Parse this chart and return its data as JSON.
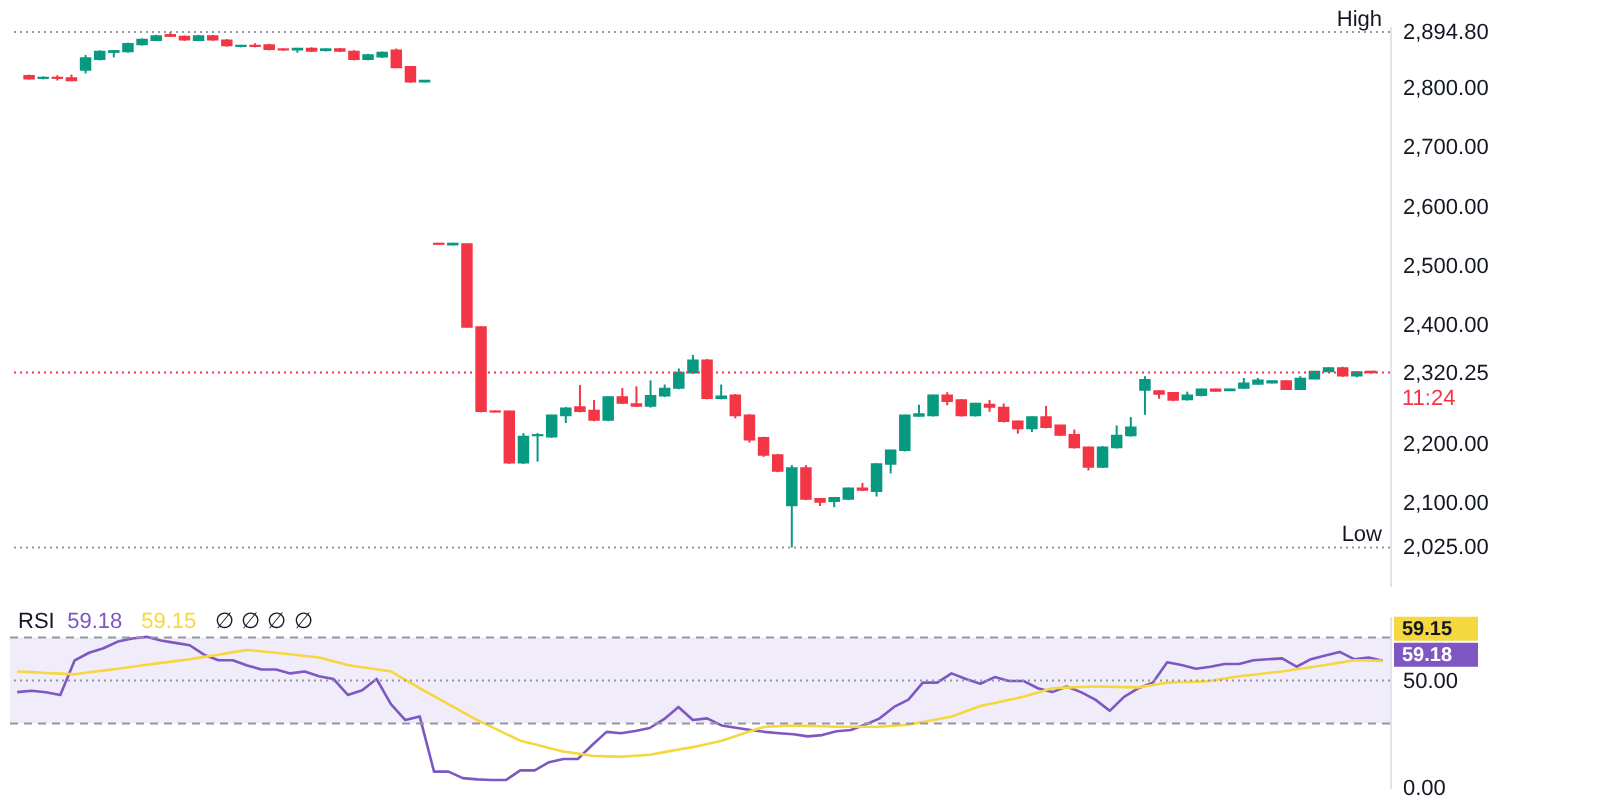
{
  "chart_data": [
    {
      "type": "candlestick",
      "tick_labels": "y",
      "categories": [
        null,
        null,
        null,
        null,
        null,
        null,
        null,
        null,
        null,
        null,
        null,
        null,
        null,
        null,
        null,
        null,
        null,
        null,
        null,
        null,
        null,
        null,
        null,
        null,
        null,
        null,
        null,
        null,
        null,
        null,
        null,
        null,
        null,
        null,
        null,
        null,
        null,
        null,
        null,
        null,
        null,
        null,
        null,
        null,
        null,
        null,
        null,
        null,
        null,
        null,
        null,
        null,
        null,
        null,
        null,
        null,
        null,
        null,
        null,
        null,
        null,
        null,
        null,
        null,
        null,
        null,
        null,
        null,
        null,
        null,
        null,
        null,
        null,
        null,
        null,
        null,
        null,
        null,
        null,
        null,
        null,
        null,
        null,
        null,
        null,
        null,
        null,
        null,
        null,
        null,
        null,
        null,
        null,
        null,
        null,
        null
      ],
      "ohlc": [
        [
          2821,
          2823,
          2815,
          2816
        ],
        [
          2817,
          2820,
          2815,
          2818
        ],
        [
          2818,
          2822,
          2813,
          2817
        ],
        [
          2817,
          2823,
          2812,
          2813
        ],
        [
          2831,
          2856,
          2825,
          2851
        ],
        [
          2849,
          2864,
          2847,
          2862
        ],
        [
          2861,
          2864,
          2852,
          2863
        ],
        [
          2862,
          2877,
          2860,
          2875
        ],
        [
          2874,
          2884,
          2872,
          2882
        ],
        [
          2881,
          2890,
          2880,
          2888
        ],
        [
          2890,
          2894.8,
          2887,
          2888
        ],
        [
          2887,
          2889,
          2880,
          2882
        ],
        [
          2881,
          2890,
          2880,
          2888
        ],
        [
          2888,
          2890,
          2880,
          2882
        ],
        [
          2881,
          2883,
          2870,
          2872
        ],
        [
          2871,
          2873,
          2869,
          2872
        ],
        [
          2872,
          2876,
          2869,
          2871
        ],
        [
          2873,
          2875,
          2864,
          2866
        ],
        [
          2866,
          2867,
          2863,
          2865
        ],
        [
          2865,
          2868,
          2860,
          2867
        ],
        [
          2867,
          2869,
          2861,
          2863
        ],
        [
          2864,
          2867,
          2862,
          2866
        ],
        [
          2866,
          2868,
          2861,
          2863
        ],
        [
          2862,
          2864,
          2847,
          2849
        ],
        [
          2849,
          2858,
          2847,
          2856
        ],
        [
          2853,
          2862,
          2851,
          2860
        ],
        [
          2864,
          2867,
          2834,
          2835
        ],
        [
          2836,
          2837,
          2809,
          2811
        ],
        [
          2811,
          2814,
          2810,
          2813
        ],
        [
          2538,
          2539,
          2536,
          2537
        ],
        [
          2536,
          2539,
          2535,
          2538
        ],
        [
          2537,
          2538,
          2396,
          2397
        ],
        [
          2397,
          2398,
          2253,
          2255
        ],
        [
          2255,
          2256,
          2253,
          2254
        ],
        [
          2255,
          2256,
          2166,
          2168
        ],
        [
          2168,
          2218,
          2166,
          2212
        ],
        [
          2214,
          2218,
          2170,
          2215
        ],
        [
          2212,
          2249,
          2210,
          2248
        ],
        [
          2248,
          2262,
          2235,
          2260
        ],
        [
          2262,
          2299,
          2253,
          2255
        ],
        [
          2256,
          2274,
          2238,
          2240
        ],
        [
          2240,
          2280,
          2238,
          2279
        ],
        [
          2279,
          2294,
          2267,
          2269
        ],
        [
          2267,
          2297,
          2262,
          2264
        ],
        [
          2264,
          2307,
          2261,
          2281
        ],
        [
          2281,
          2300,
          2279,
          2293
        ],
        [
          2294,
          2327,
          2292,
          2320
        ],
        [
          2320,
          2350,
          2318,
          2341
        ],
        [
          2341,
          2343,
          2275,
          2277
        ],
        [
          2277,
          2300,
          2275,
          2280
        ],
        [
          2282,
          2284,
          2243,
          2248
        ],
        [
          2248,
          2250,
          2202,
          2207
        ],
        [
          2210,
          2212,
          2178,
          2181
        ],
        [
          2181,
          2183,
          2152,
          2154
        ],
        [
          2096,
          2164,
          2025,
          2159
        ],
        [
          2159,
          2164,
          2105,
          2107
        ],
        [
          2107,
          2108,
          2095,
          2102
        ],
        [
          2103,
          2110,
          2093,
          2109
        ],
        [
          2107,
          2126,
          2105,
          2125
        ],
        [
          2125,
          2134,
          2120,
          2122
        ],
        [
          2120,
          2167,
          2111,
          2166
        ],
        [
          2166,
          2190,
          2150,
          2189
        ],
        [
          2189,
          2249,
          2187,
          2248
        ],
        [
          2247,
          2266,
          2246,
          2250
        ],
        [
          2248,
          2283,
          2246,
          2282
        ],
        [
          2282,
          2287,
          2265,
          2272
        ],
        [
          2274,
          2275,
          2246,
          2248
        ],
        [
          2248,
          2269,
          2246,
          2268
        ],
        [
          2266,
          2274,
          2254,
          2262
        ],
        [
          2261,
          2268,
          2236,
          2238
        ],
        [
          2238,
          2239,
          2217,
          2226
        ],
        [
          2226,
          2246,
          2220,
          2245
        ],
        [
          2245,
          2264,
          2226,
          2228
        ],
        [
          2231,
          2232,
          2213,
          2215
        ],
        [
          2215,
          2224,
          2192,
          2194
        ],
        [
          2194,
          2195,
          2155,
          2161
        ],
        [
          2161,
          2196,
          2159,
          2194
        ],
        [
          2194,
          2231,
          2192,
          2214
        ],
        [
          2214,
          2245,
          2212,
          2228
        ],
        [
          2291,
          2314,
          2249,
          2308
        ],
        [
          2289,
          2290,
          2276,
          2284
        ],
        [
          2286,
          2287,
          2272,
          2274
        ],
        [
          2275,
          2288,
          2273,
          2282
        ],
        [
          2282,
          2293,
          2280,
          2292
        ],
        [
          2292,
          2293,
          2288,
          2289
        ],
        [
          2290,
          2293,
          2289,
          2292
        ],
        [
          2294,
          2311,
          2293,
          2302
        ],
        [
          2301,
          2311,
          2300,
          2307
        ],
        [
          2303,
          2307,
          2302,
          2306
        ],
        [
          2306,
          2307,
          2291,
          2292
        ],
        [
          2292,
          2314,
          2291,
          2310
        ],
        [
          2310,
          2323,
          2309,
          2322
        ],
        [
          2322,
          2329,
          2321,
          2328
        ],
        [
          2328,
          2330,
          2313,
          2315
        ],
        [
          2315,
          2322,
          2312,
          2321
        ],
        [
          2322,
          2323,
          2319,
          2320.25
        ]
      ],
      "colors": [
        "#f23645",
        "#089981",
        "#f23645",
        "#f23645",
        "#089981",
        "#089981",
        "#089981",
        "#089981",
        "#089981",
        "#089981",
        "#f23645",
        "#f23645",
        "#089981",
        "#f23645",
        "#f23645",
        "#089981",
        "#f23645",
        "#f23645",
        "#f23645",
        "#089981",
        "#f23645",
        "#089981",
        "#f23645",
        "#f23645",
        "#089981",
        "#089981",
        "#f23645",
        "#f23645",
        "#089981",
        "#f23645",
        "#089981",
        "#f23645",
        "#f23645",
        "#f23645",
        "#f23645",
        "#089981",
        "#089981",
        "#089981",
        "#089981",
        "#f23645",
        "#f23645",
        "#089981",
        "#f23645",
        "#f23645",
        "#089981",
        "#089981",
        "#089981",
        "#089981",
        "#f23645",
        "#089981",
        "#f23645",
        "#f23645",
        "#f23645",
        "#f23645",
        "#089981",
        "#f23645",
        "#f23645",
        "#089981",
        "#089981",
        "#f23645",
        "#089981",
        "#089981",
        "#089981",
        "#089981",
        "#089981",
        "#f23645",
        "#f23645",
        "#089981",
        "#f23645",
        "#f23645",
        "#f23645",
        "#089981",
        "#f23645",
        "#f23645",
        "#f23645",
        "#f23645",
        "#089981",
        "#089981",
        "#089981",
        "#089981",
        "#f23645",
        "#f23645",
        "#089981",
        "#089981",
        "#f23645",
        "#089981",
        "#089981",
        "#089981",
        "#089981",
        "#f23645",
        "#089981",
        "#089981",
        "#089981",
        "#f23645",
        "#089981",
        "#f23645"
      ],
      "ylim": [
        1960,
        2905
      ],
      "yticks": [
        {
          "value": 2025,
          "label": "2,025.00"
        },
        {
          "value": 2100,
          "label": "2,100.00"
        },
        {
          "value": 2200,
          "label": "2,200.00"
        },
        {
          "value": 2320.25,
          "label": "2,320.25"
        },
        {
          "value": 2400,
          "label": "2,400.00"
        },
        {
          "value": 2500,
          "label": "2,500.00"
        },
        {
          "value": 2600,
          "label": "2,600.00"
        },
        {
          "value": 2700,
          "label": "2,700.00"
        },
        {
          "value": 2800,
          "label": "2,800.00"
        },
        {
          "value": 2894.8,
          "label": "2,894.80"
        }
      ],
      "ref_lines": [
        {
          "axis": "y",
          "value": 2894.8,
          "label": "High",
          "color": "#9598a1",
          "line_style": "dotted"
        },
        {
          "axis": "y",
          "value": 2025,
          "label": "Low",
          "color": "#9598a1",
          "line_style": "dotted"
        },
        {
          "axis": "y",
          "value": 2320.25,
          "color": "#f23645",
          "line_style": "dotted"
        }
      ],
      "annotations": [
        "11:24"
      ]
    },
    {
      "type": "line",
      "title": "RSI",
      "tick_labels": "y",
      "ylim": [
        0,
        80
      ],
      "yticks": [
        {
          "value": 0,
          "label": "0.00"
        },
        {
          "value": 50,
          "label": "50.00"
        }
      ],
      "categories": [
        null,
        null,
        null,
        null,
        null,
        null,
        null,
        null,
        null,
        null,
        null,
        null,
        null,
        null,
        null,
        null,
        null,
        null,
        null,
        null,
        null,
        null,
        null,
        null,
        null,
        null,
        null,
        null,
        null,
        null,
        null,
        null,
        null,
        null,
        null,
        null,
        null,
        null,
        null,
        null,
        null,
        null,
        null,
        null,
        null,
        null,
        null,
        null,
        null,
        null,
        null,
        null,
        null,
        null,
        null,
        null,
        null,
        null,
        null,
        null,
        null,
        null,
        null,
        null,
        null,
        null,
        null,
        null,
        null,
        null,
        null,
        null,
        null,
        null,
        null,
        null,
        null,
        null,
        null,
        null,
        null,
        null,
        null,
        null,
        null,
        null,
        null,
        null,
        null,
        null,
        null,
        null,
        null,
        null,
        null,
        null
      ],
      "series": [
        {
          "color": "#7e57c2",
          "values": [
            44.6,
            45.2,
            44.5,
            43.3,
            59.4,
            62.9,
            65,
            68.1,
            69.5,
            70.3,
            68.6,
            67.5,
            66.4,
            62,
            59.4,
            59.4,
            57,
            55.1,
            55.1,
            53.3,
            54.2,
            52,
            50.7,
            43.3,
            45.5,
            50.7,
            39,
            31.6,
            33.3,
            7.6,
            7.6,
            4.6,
            4,
            3.7,
            3.7,
            8.2,
            8.2,
            12,
            13.5,
            13.5,
            20,
            26.1,
            25.5,
            26.5,
            27.9,
            32,
            37.7,
            31.6,
            32.4,
            29.1,
            28,
            27,
            26.1,
            25.5,
            25,
            24,
            24.6,
            26.4,
            27,
            29.5,
            32.4,
            37.7,
            41.1,
            49,
            49,
            53.3,
            50.7,
            48.5,
            51.6,
            49.8,
            49.8,
            46.4,
            44.6,
            47.2,
            44.6,
            41.1,
            35.9,
            42.4,
            46.4,
            49,
            58.5,
            57.2,
            55.5,
            56.4,
            57.7,
            57.7,
            59.4,
            59.9,
            60.3,
            56.4,
            59.9,
            61.6,
            63.3,
            59.9,
            60.7,
            59.18
          ],
          "value_labels": [
            null,
            null,
            null,
            null,
            null,
            null,
            null,
            null,
            null,
            null,
            null,
            null,
            null,
            null,
            null,
            null,
            null,
            null,
            null,
            null,
            null,
            null,
            null,
            null,
            null,
            null,
            null,
            null,
            null,
            null,
            null,
            null,
            null,
            null,
            null,
            null,
            null,
            null,
            null,
            null,
            null,
            null,
            null,
            null,
            null,
            null,
            null,
            null,
            null,
            null,
            null,
            null,
            null,
            null,
            null,
            null,
            null,
            null,
            null,
            null,
            null,
            null,
            null,
            null,
            null,
            null,
            null,
            null,
            null,
            null,
            null,
            null,
            null,
            null,
            null,
            null,
            null,
            null,
            null,
            null,
            null,
            null,
            null,
            null,
            null,
            null,
            null,
            null,
            null,
            null,
            null,
            null,
            null,
            null,
            null,
            "59.18"
          ]
        },
        {
          "color": "#f5d73f",
          "values": [
            54.2,
            53.9,
            53.5,
            53.2,
            52.9,
            53.8,
            54.6,
            55.5,
            56.4,
            57.3,
            58.2,
            59,
            59.9,
            61,
            62,
            63.2,
            64.2,
            63.6,
            62.9,
            62.2,
            61.4,
            60.7,
            59,
            57.2,
            56.2,
            55.2,
            54.2,
            50.3,
            46.4,
            42.7,
            39,
            35.3,
            31.6,
            28.4,
            25.2,
            22,
            20.3,
            18.6,
            17,
            16,
            15,
            14.7,
            14.5,
            15,
            15.5,
            16.7,
            17.9,
            19,
            20.5,
            22,
            24.2,
            26.4,
            28.5,
            28.8,
            29.1,
            28.9,
            28.7,
            28.5,
            28.5,
            28.5,
            28.5,
            29,
            29.4,
            30.7,
            32,
            33.3,
            35.7,
            38.1,
            39.5,
            41,
            42.4,
            44.4,
            46.4,
            46.7,
            47,
            47.2,
            47.1,
            46.9,
            46.8,
            47.9,
            49,
            49.3,
            49.5,
            49.8,
            50.9,
            52,
            52.7,
            53.5,
            54.2,
            55.2,
            56.2,
            57.2,
            58.3,
            59.4,
            59.3,
            59.15
          ],
          "value_labels": [
            null,
            null,
            null,
            null,
            null,
            null,
            null,
            null,
            null,
            null,
            null,
            null,
            null,
            null,
            null,
            null,
            null,
            null,
            null,
            null,
            null,
            null,
            null,
            null,
            null,
            null,
            null,
            null,
            null,
            null,
            null,
            null,
            null,
            null,
            null,
            null,
            null,
            null,
            null,
            null,
            null,
            null,
            null,
            null,
            null,
            null,
            null,
            null,
            null,
            null,
            null,
            null,
            null,
            null,
            null,
            null,
            null,
            null,
            null,
            null,
            null,
            null,
            null,
            null,
            null,
            null,
            null,
            null,
            null,
            null,
            null,
            null,
            null,
            null,
            null,
            null,
            null,
            null,
            null,
            null,
            null,
            null,
            null,
            null,
            null,
            null,
            null,
            null,
            null,
            null,
            null,
            null,
            null,
            null,
            null,
            "59.15"
          ]
        }
      ],
      "ref_lines": [
        {
          "axis": "y",
          "value": 70,
          "color": "#9598a1",
          "line_style": "dashed"
        },
        {
          "axis": "y",
          "value": 50,
          "color": "#9598a1",
          "line_style": "dotted"
        },
        {
          "axis": "y",
          "value": 30,
          "color": "#9598a1",
          "line_style": "dashed"
        }
      ],
      "bands": [
        {
          "axis": "y",
          "from": 30,
          "to": 70,
          "color": "#f0ecfa"
        }
      ],
      "annotations": [
        "∅ ∅ ∅ ∅"
      ]
    }
  ]
}
